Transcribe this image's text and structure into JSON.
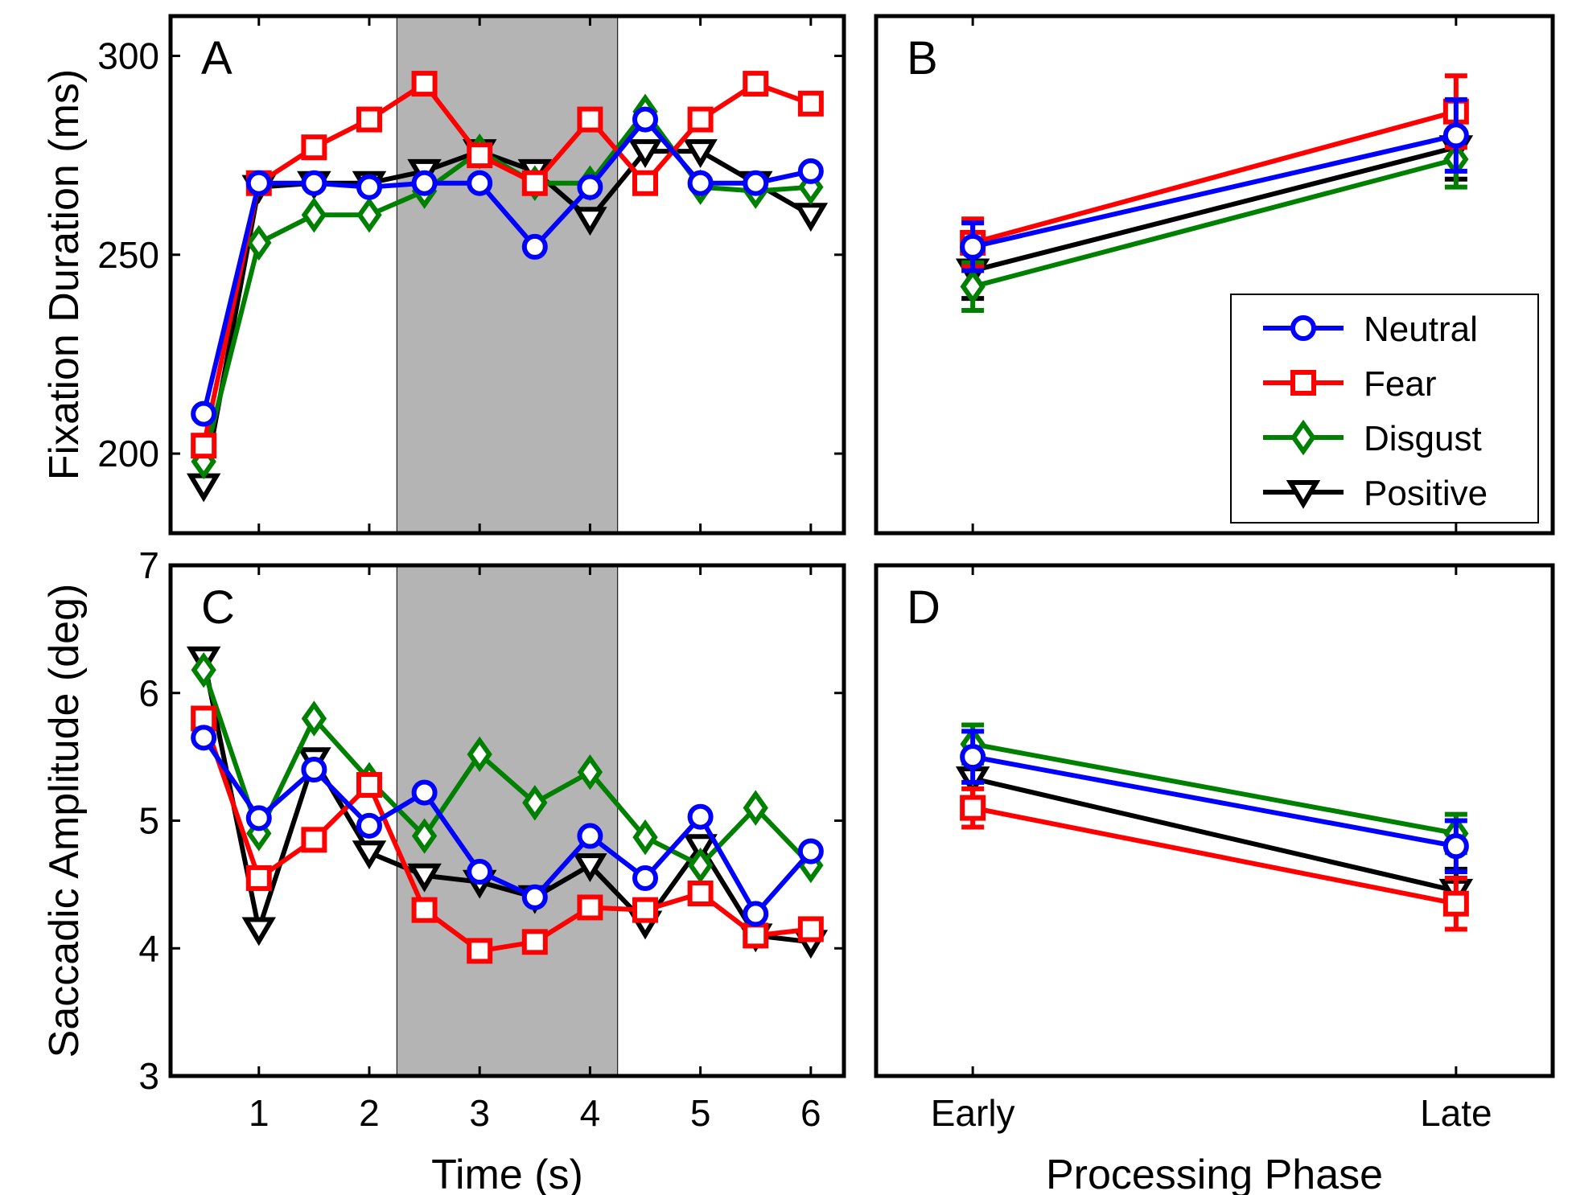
{
  "figure": {
    "series_styles": [
      {
        "name": "Neutral",
        "color": "#0000ff",
        "marker": "circle-marker"
      },
      {
        "name": "Fear",
        "color": "#ff0000",
        "marker": "square-marker"
      },
      {
        "name": "Disgust",
        "color": "#008000",
        "marker": "diamond-marker"
      },
      {
        "name": "Positive",
        "color": "#000000",
        "marker": "triangle-down-marker"
      }
    ],
    "shading_color": "#b4b4b4"
  },
  "chart_data": [
    {
      "panel": "A",
      "type": "line",
      "ylabel": "Fixation Duration (ms)",
      "xlabel": "",
      "xlim": [
        0.2,
        6.3
      ],
      "ylim": [
        180,
        310
      ],
      "xticks": [
        1,
        2,
        3,
        4,
        5,
        6
      ],
      "yticks": [
        200,
        250,
        300
      ],
      "show_xtick_labels": false,
      "shaded_region": [
        2.25,
        4.25
      ],
      "x": [
        0.5,
        1,
        1.5,
        2,
        2.5,
        3,
        3.5,
        4,
        4.5,
        5,
        5.5,
        6
      ],
      "series": [
        {
          "name": "Neutral",
          "values": [
            210,
            268,
            268,
            267,
            268,
            268,
            252,
            267,
            284,
            268,
            268,
            271
          ]
        },
        {
          "name": "Fear",
          "values": [
            202,
            268,
            277,
            284,
            293,
            275,
            268,
            284,
            268,
            284,
            293,
            288
          ]
        },
        {
          "name": "Disgust",
          "values": [
            198,
            253,
            260,
            260,
            266,
            276,
            268,
            268,
            286,
            267,
            266,
            267
          ]
        },
        {
          "name": "Positive",
          "values": [
            192,
            267,
            268,
            268,
            271,
            276,
            271,
            259,
            276,
            276,
            268,
            260
          ]
        }
      ]
    },
    {
      "panel": "B",
      "type": "line",
      "ylabel": "",
      "xlabel": "",
      "xlim": [
        0.8,
        2.2
      ],
      "ylim": [
        180,
        310
      ],
      "xticks": [
        1,
        2
      ],
      "categories": [
        "Early",
        "Late"
      ],
      "show_xtick_labels": false,
      "show_ytick_labels": false,
      "legend_location": "lower-right",
      "series": [
        {
          "name": "Neutral",
          "values": [
            252,
            280
          ],
          "errors": [
            6,
            9
          ]
        },
        {
          "name": "Fear",
          "values": [
            253,
            286
          ],
          "errors": [
            6,
            9
          ]
        },
        {
          "name": "Disgust",
          "values": [
            242,
            274
          ],
          "errors": [
            6,
            7
          ]
        },
        {
          "name": "Positive",
          "values": [
            246,
            277
          ],
          "errors": [
            7,
            8
          ]
        }
      ]
    },
    {
      "panel": "C",
      "type": "line",
      "ylabel": "Saccadic Amplitude (deg)",
      "xlabel": "Time (s)",
      "xlim": [
        0.2,
        6.3
      ],
      "ylim": [
        3,
        7
      ],
      "xticks": [
        1,
        2,
        3,
        4,
        5,
        6
      ],
      "yticks": [
        3,
        4,
        5,
        6,
        7
      ],
      "shaded_region": [
        2.25,
        4.25
      ],
      "x": [
        0.5,
        1,
        1.5,
        2,
        2.5,
        3,
        3.5,
        4,
        4.5,
        5,
        5.5,
        6
      ],
      "series": [
        {
          "name": "Neutral",
          "values": [
            5.65,
            5.02,
            5.4,
            4.96,
            5.22,
            4.6,
            4.4,
            4.88,
            4.55,
            5.03,
            4.27,
            4.76
          ]
        },
        {
          "name": "Fear",
          "values": [
            5.8,
            4.55,
            4.85,
            5.28,
            4.3,
            3.98,
            4.05,
            4.32,
            4.3,
            4.43,
            4.1,
            4.15
          ]
        },
        {
          "name": "Disgust",
          "values": [
            6.18,
            4.9,
            5.8,
            5.32,
            4.88,
            5.52,
            5.14,
            5.38,
            4.87,
            4.65,
            5.1,
            4.65
          ]
        },
        {
          "name": "Positive",
          "values": [
            6.27,
            4.15,
            5.48,
            4.75,
            4.57,
            4.52,
            4.4,
            4.65,
            4.2,
            4.8,
            4.1,
            4.05
          ]
        }
      ]
    },
    {
      "panel": "D",
      "type": "line",
      "ylabel": "",
      "xlabel": "Processing Phase",
      "xlim": [
        0.8,
        2.2
      ],
      "ylim": [
        3,
        7
      ],
      "xticks": [
        1,
        2
      ],
      "categories": [
        "Early",
        "Late"
      ],
      "show_ytick_labels": false,
      "series": [
        {
          "name": "Neutral",
          "values": [
            5.5,
            4.8
          ],
          "errors": [
            0.2,
            0.2
          ]
        },
        {
          "name": "Fear",
          "values": [
            5.1,
            4.35
          ],
          "errors": [
            0.15,
            0.2
          ]
        },
        {
          "name": "Disgust",
          "values": [
            5.6,
            4.9
          ],
          "errors": [
            0.15,
            0.15
          ]
        },
        {
          "name": "Positive",
          "values": [
            5.33,
            4.45
          ],
          "errors": [
            0.2,
            0.17
          ]
        }
      ]
    }
  ]
}
